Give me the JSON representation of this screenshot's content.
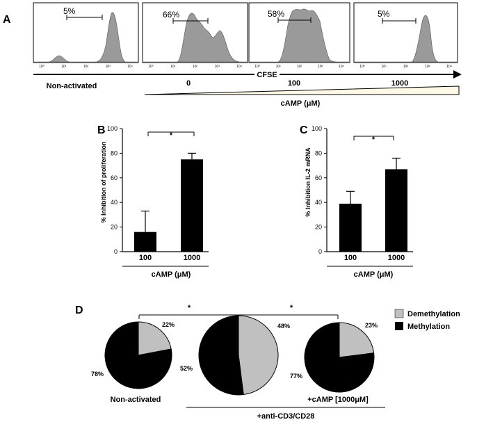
{
  "figure": {
    "panel_a": {
      "letter": "A",
      "xaxis_label": "CFSE",
      "condition_labels": [
        "Non-activated",
        "0",
        "100",
        "1000"
      ],
      "gradient_label": "cAMP (μM)",
      "tick_labels": [
        "10⁰",
        "10¹",
        "10²",
        "10³",
        "10⁴"
      ],
      "histograms": [
        {
          "label": "Non-activated",
          "gate_percent": "5%"
        },
        {
          "label": "0",
          "gate_percent": "66%"
        },
        {
          "label": "100",
          "gate_percent": "58%"
        },
        {
          "label": "1000",
          "gate_percent": "5%"
        }
      ]
    },
    "panel_b": {
      "letter": "B",
      "significance": "*"
    },
    "panel_c": {
      "letter": "C",
      "significance": "*"
    },
    "panel_d": {
      "letter": "D",
      "significance": [
        "*",
        "*"
      ],
      "legend": [
        {
          "label": "Demethylation",
          "color": "#c0c0c0"
        },
        {
          "label": "Methylation",
          "color": "#000000"
        }
      ],
      "bottom_label": "+anti-CD3/CD28"
    }
  },
  "chart_data": [
    {
      "type": "bar",
      "panel": "B",
      "categories": [
        "100",
        "1000"
      ],
      "values": [
        16,
        75
      ],
      "errors": [
        17,
        5
      ],
      "bar_color": "#000000",
      "title": "",
      "xlabel": "cAMP (μM)",
      "ylabel": "% Inhibition  of proliferation",
      "ylim": [
        0,
        100
      ],
      "yticks": [
        0,
        20,
        40,
        60,
        80,
        100
      ]
    },
    {
      "type": "bar",
      "panel": "C",
      "categories": [
        "100",
        "1000"
      ],
      "values": [
        39,
        67
      ],
      "errors": [
        10,
        9
      ],
      "bar_color": "#000000",
      "title": "",
      "xlabel": "cAMP (μM)",
      "ylabel": "% Inhibition  IL-2 mRNA",
      "ylim": [
        0,
        100
      ],
      "yticks": [
        0,
        20,
        40,
        60,
        80,
        100
      ]
    },
    {
      "type": "pie",
      "panel": "D",
      "title": "Non-activated",
      "labels": [
        "Demethylation",
        "Methylation"
      ],
      "values": [
        22,
        78
      ],
      "value_labels": [
        "22%",
        "78%"
      ],
      "colors": [
        "#c0c0c0",
        "#000000"
      ]
    },
    {
      "type": "pie",
      "panel": "D",
      "title": "",
      "labels": [
        "Demethylation",
        "Methylation"
      ],
      "values": [
        48,
        52
      ],
      "value_labels": [
        "48%",
        "52%"
      ],
      "colors": [
        "#c0c0c0",
        "#000000"
      ]
    },
    {
      "type": "pie",
      "panel": "D",
      "title": "+cAMP [1000μM]",
      "labels": [
        "Demethylation",
        "Methylation"
      ],
      "values": [
        23,
        77
      ],
      "value_labels": [
        "23%",
        "77%"
      ],
      "colors": [
        "#c0c0c0",
        "#000000"
      ]
    }
  ]
}
